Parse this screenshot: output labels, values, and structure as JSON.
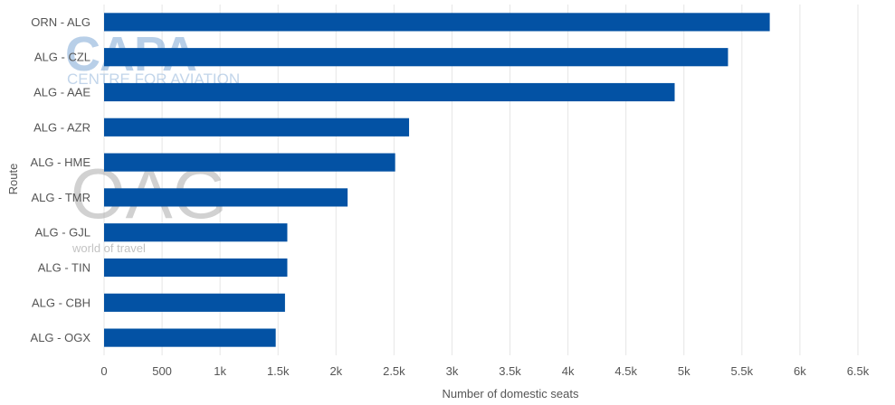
{
  "watermarks": {
    "capa_title": "CAPA",
    "capa_sub": "CENTRE FOR AVIATION",
    "oag_title": "OAG",
    "oag_sub": "world of travel"
  },
  "chart_data": {
    "type": "bar",
    "orientation": "horizontal",
    "title": "",
    "xlabel": "Number of domestic seats",
    "ylabel": "Route",
    "categories": [
      "ORN - ALG",
      "ALG - CZL",
      "ALG - AAE",
      "ALG - AZR",
      "ALG - HME",
      "ALG - TMR",
      "ALG - GJL",
      "ALG - TIN",
      "ALG - CBH",
      "ALG - OGX"
    ],
    "values": [
      5740,
      5380,
      4920,
      2630,
      2510,
      2100,
      1580,
      1580,
      1560,
      1480
    ],
    "xlim": [
      0,
      6500
    ],
    "x_ticks": [
      0,
      500,
      1000,
      1500,
      2000,
      2500,
      3000,
      3500,
      4000,
      4500,
      5000,
      5500,
      6000,
      6500
    ],
    "x_tick_labels": [
      "0",
      "500",
      "1k",
      "1.5k",
      "2k",
      "2.5k",
      "3k",
      "3.5k",
      "4k",
      "4.5k",
      "5k",
      "5.5k",
      "6k",
      "6.5k"
    ],
    "grid": true,
    "legend": "none",
    "bar_color": "#0352a4",
    "grid_color": "#e6e6e6"
  }
}
